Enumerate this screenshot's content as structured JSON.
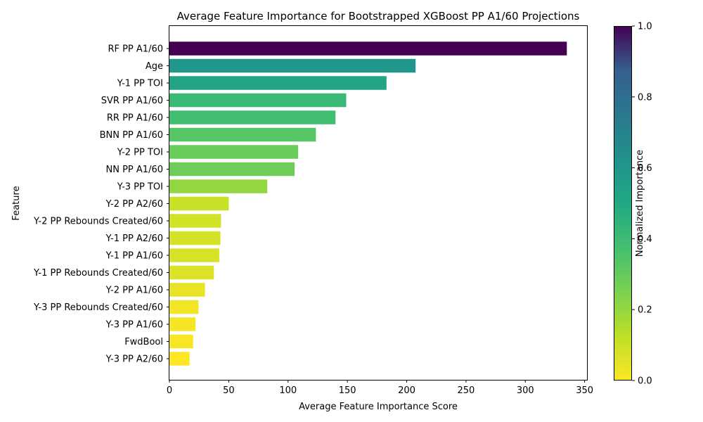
{
  "chart_data": {
    "type": "bar",
    "orientation": "horizontal",
    "title": "Average Feature Importance for Bootstrapped XGBoost PP A1/60 Projections",
    "xlabel": "Average Feature Importance Score",
    "ylabel": "Feature",
    "xlim": [
      0,
      352
    ],
    "xticks": [
      "0",
      "50",
      "100",
      "150",
      "200",
      "250",
      "300",
      "350"
    ],
    "xtick_values": [
      0,
      50,
      100,
      150,
      200,
      250,
      300,
      350
    ],
    "categories": [
      "RF PP A1/60",
      "Age",
      "Y-1 PP TOI",
      "SVR PP A1/60",
      "RR PP A1/60",
      "BNN PP A1/60",
      "Y-2 PP TOI",
      "NN PP A1/60",
      "Y-3 PP TOI",
      "Y-2 PP A2/60",
      "Y-2 PP Rebounds Created/60",
      "Y-1 PP A2/60",
      "Y-1 PP A1/60",
      "Y-1 PP Rebounds Created/60",
      "Y-2 PP A1/60",
      "Y-3 PP Rebounds Created/60",
      "Y-3 PP A1/60",
      "FwdBool",
      "Y-3 PP A2/60"
    ],
    "values": [
      335,
      207.5,
      183,
      149,
      140,
      123.5,
      108.5,
      105.5,
      82.5,
      50,
      43.5,
      43,
      42,
      37.5,
      30,
      24.5,
      22,
      20,
      17
    ],
    "colorbar": {
      "label": "Normalized Importance",
      "colormap": "viridis_r",
      "ticks": [
        "0.0",
        "0.2",
        "0.4",
        "0.6",
        "0.8",
        "1.0"
      ],
      "tick_values": [
        0,
        0.2,
        0.4,
        0.6,
        0.8,
        1.0
      ]
    },
    "grid": false,
    "legend": "none"
  }
}
